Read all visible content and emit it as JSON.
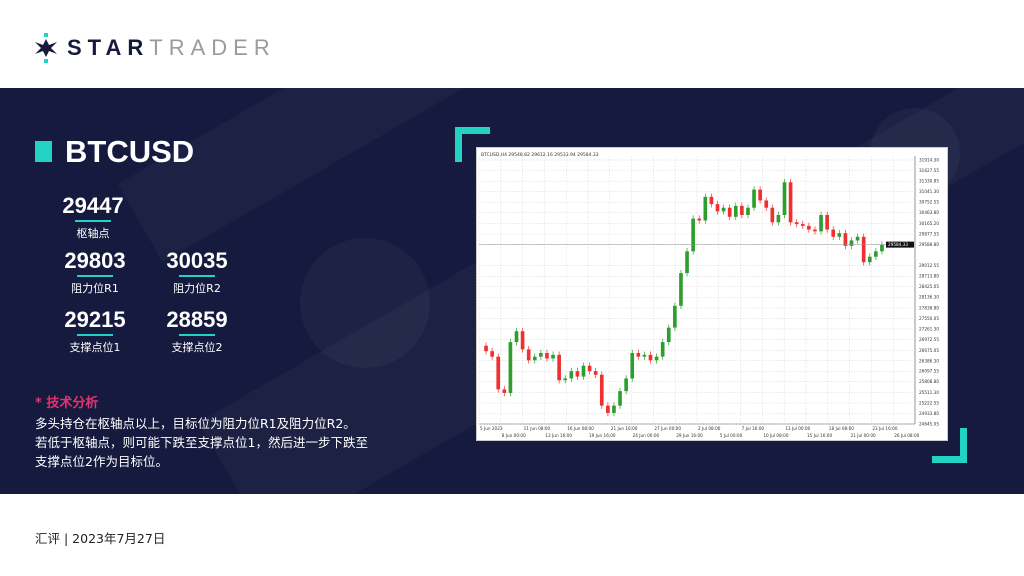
{
  "brand": {
    "bold": "STAR",
    "light": "TRADER"
  },
  "symbol": "BTCUSD",
  "levels": {
    "pivot": {
      "value": "29447",
      "label": "枢轴点"
    },
    "r1": {
      "value": "29803",
      "label": "阻力位R1"
    },
    "r2": {
      "value": "30035",
      "label": "阻力位R2"
    },
    "s1": {
      "value": "29215",
      "label": "支撑点位1"
    },
    "s2": {
      "value": "28859",
      "label": "支撑点位2"
    }
  },
  "analysis": {
    "title": "* 技术分析",
    "lines": [
      "多头持仓在枢轴点以上，目标位为阻力位R1及阻力位R2。",
      "若低于枢轴点，则可能下跌至支撑点位1，然后进一步下跌至",
      "支撑点位2作为目标位。"
    ]
  },
  "footer": "汇评 | 2023年7月27日",
  "colors": {
    "navy": "#151a3e",
    "teal": "#22d3c4",
    "pink": "#e5336f",
    "up": "#2e9e2e",
    "down": "#f03030"
  },
  "chart_data": {
    "type": "candlestick",
    "header": "BTCUSD,H4 29548.82 29612.16 29533.94 29584.33",
    "current_price": "29584.33",
    "ylim": [
      24645.05,
      31914.3
    ],
    "y_ticks": [
      "31914.30",
      "31627.55",
      "31330.85",
      "31041.30",
      "30752.55",
      "30463.80",
      "30165.20",
      "29877.55",
      "29588.80",
      "29012.55",
      "28713.80",
      "28425.05",
      "28136.30",
      "27838.80",
      "27550.05",
      "27261.30",
      "26972.55",
      "26675.05",
      "26386.30",
      "26097.55",
      "25808.80",
      "25511.30",
      "25222.55",
      "24933.80",
      "24645.05"
    ],
    "x_ticks": [
      "5 Jun 2023",
      "8 Jun 00:00",
      "11 Jun 08:00",
      "13 Jun 16:00",
      "16 Jun 08:00",
      "19 Jun 16:00",
      "21 Jun 16:00",
      "24 Jun 00:00",
      "27 Jun 00:00",
      "29 Jun 16:00",
      "2 Jul 08:00",
      "5 Jul 00:00",
      "7 Jul 16:00",
      "10 Jul 08:00",
      "13 Jul 00:00",
      "15 Jul 16:00",
      "18 Jul 08:00",
      "21 Jul 00:00",
      "23 Jul 16:00",
      "26 Jul 08:00"
    ],
    "grid": true,
    "closes": [
      26650,
      26500,
      25600,
      25500,
      26900,
      27200,
      26700,
      26400,
      26500,
      26600,
      26450,
      26550,
      25850,
      25900,
      26100,
      25950,
      26250,
      26100,
      26000,
      25150,
      24950,
      25150,
      25550,
      25900,
      26600,
      26500,
      26550,
      26400,
      26500,
      26900,
      27300,
      27900,
      28800,
      29400,
      30300,
      30250,
      30900,
      30700,
      30500,
      30600,
      30350,
      30650,
      30400,
      30600,
      31100,
      30800,
      30600,
      30200,
      30400,
      31300,
      30200,
      30150,
      30100,
      30000,
      29950,
      30400,
      30000,
      29800,
      29900,
      29550,
      29700,
      29800,
      29100,
      29250,
      29400,
      29584
    ]
  }
}
